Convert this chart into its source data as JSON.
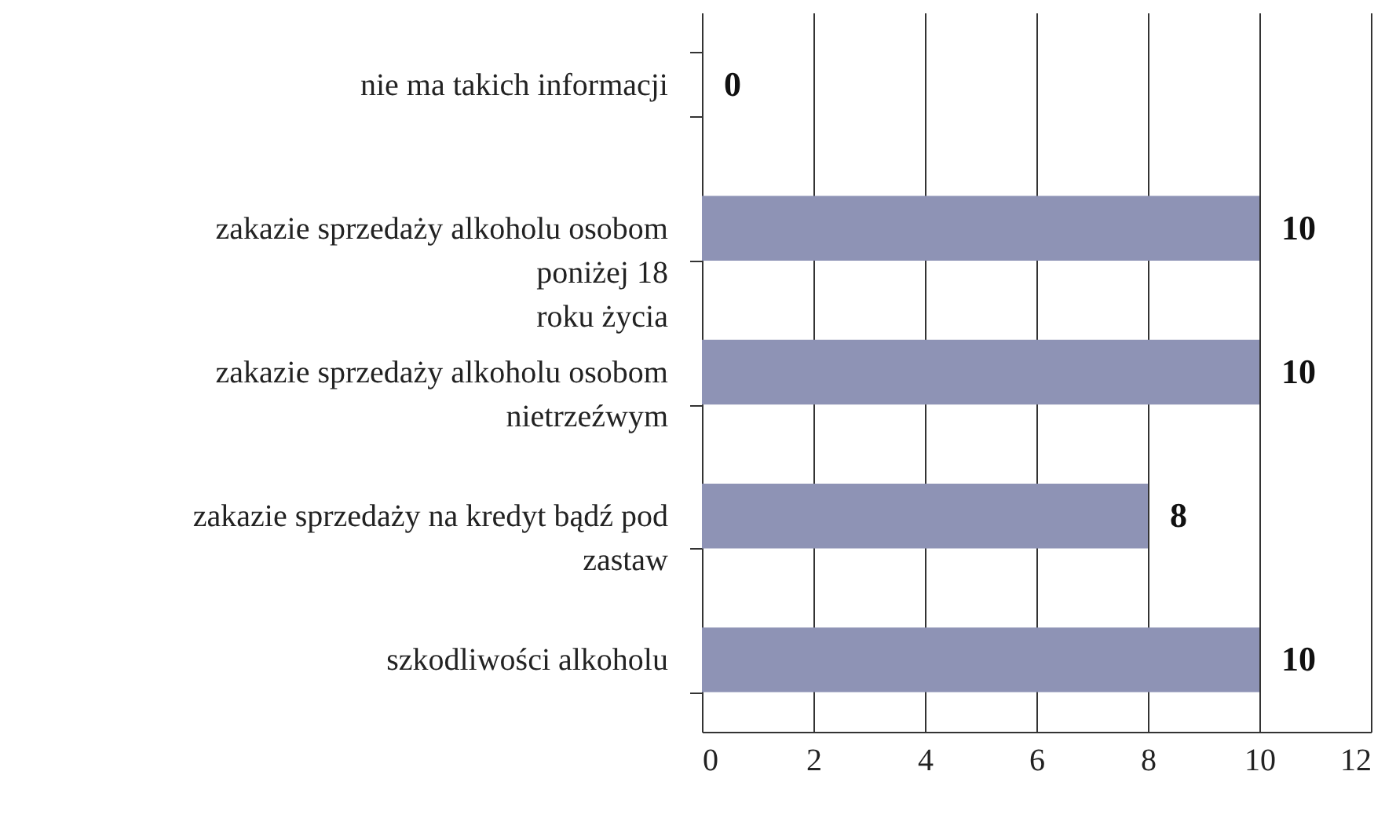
{
  "chart_data": {
    "type": "bar",
    "orientation": "horizontal",
    "categories": [
      "nie ma takich informacji",
      "zakazie sprzedaży alkoholu osobom\nponiżej 18\nroku życia",
      "zakazie sprzedaży alkoholu osobom\nnietrzeźwym",
      "zakazie sprzedaży na kredyt bądź pod\nzastaw",
      "szkodliwości alkoholu"
    ],
    "values": [
      0,
      10,
      10,
      8,
      10
    ],
    "color": "#8e93b5",
    "xlim": [
      0,
      12
    ],
    "xticks": [
      0,
      2,
      4,
      6,
      8,
      10,
      12
    ],
    "grid": "x",
    "data_labels": true
  }
}
